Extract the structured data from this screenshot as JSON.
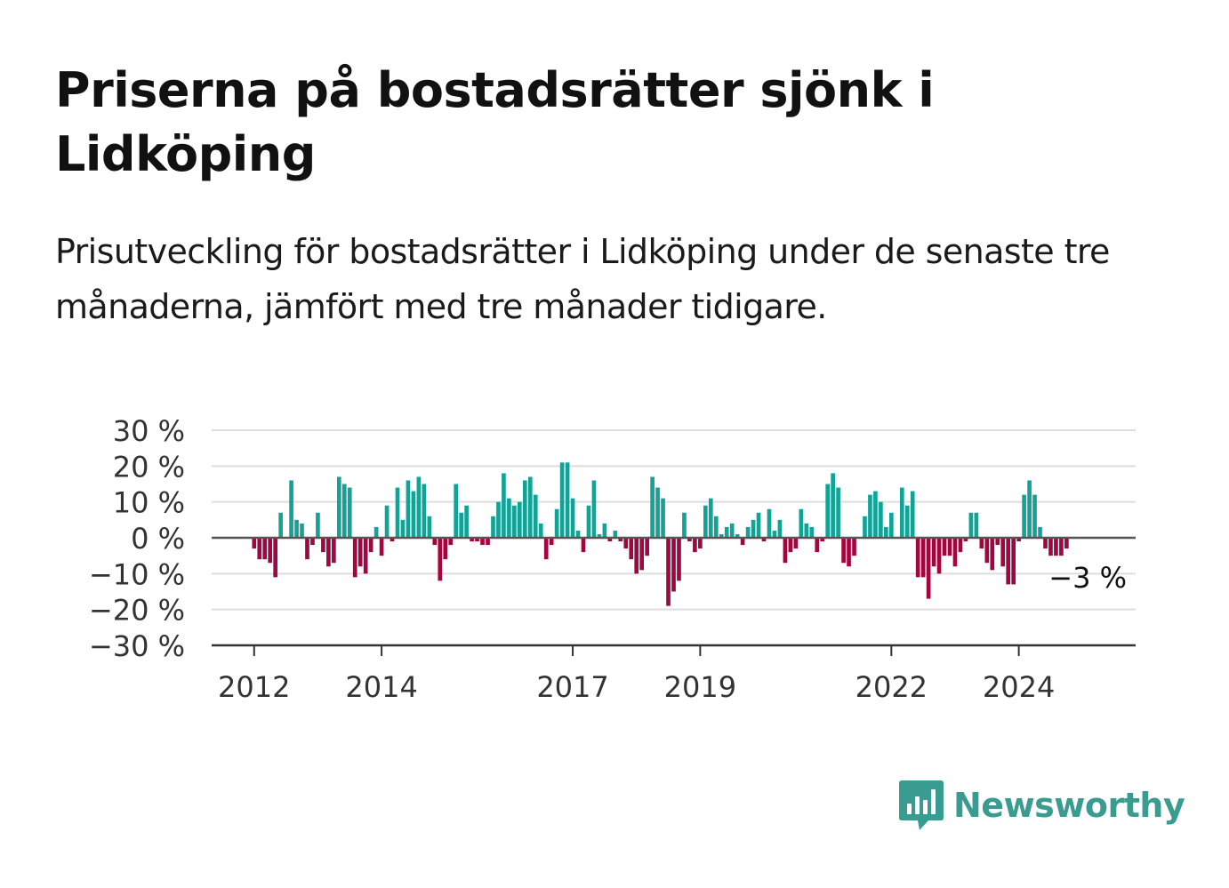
{
  "title": "Priserna på bostadsrätter sjönk i Lidköping",
  "subtitle": "Prisutveckling för bostadsrätter i Lidköping under de senaste tre månaderna, jämfört med tre månader tidigare.",
  "brand": {
    "name": "Newsworthy",
    "icon": "newsworthy-logo-icon",
    "color": "#3a9c90"
  },
  "colors": {
    "positive": "#12a397",
    "negative": "#a3053f",
    "grid": "#dddddd",
    "axis": "#333333"
  },
  "chart_data": {
    "type": "bar",
    "ylim": [
      -30,
      30
    ],
    "yticks": [
      30,
      20,
      10,
      0,
      -10,
      -20,
      -30
    ],
    "ytick_labels": [
      "30 %",
      "20 %",
      "10 %",
      "0 %",
      "−10 %",
      "−20 %",
      "−30 %"
    ],
    "xticks": [
      {
        "label": "2012",
        "x": "2012-01"
      },
      {
        "label": "2014",
        "x": "2014-01"
      },
      {
        "label": "2017",
        "x": "2017-01"
      },
      {
        "label": "2019",
        "x": "2019-01"
      },
      {
        "label": "2022",
        "x": "2022-01"
      },
      {
        "label": "2024",
        "x": "2024-01"
      }
    ],
    "x_range": [
      "2011-05",
      "2025-11"
    ],
    "grid": true,
    "last_label": "−3 %",
    "series": [
      {
        "x": [
          "2012-01",
          "2012-02",
          "2012-03",
          "2012-04",
          "2012-05",
          "2012-06",
          "2012-07",
          "2012-08",
          "2012-09",
          "2012-10",
          "2012-11",
          "2012-12",
          "2013-01",
          "2013-02",
          "2013-03",
          "2013-04",
          "2013-05",
          "2013-06",
          "2013-07",
          "2013-08",
          "2013-09",
          "2013-10",
          "2013-11",
          "2013-12",
          "2014-01",
          "2014-02",
          "2014-03",
          "2014-04",
          "2014-05",
          "2014-06",
          "2014-07",
          "2014-08",
          "2014-09",
          "2014-10",
          "2014-11",
          "2014-12",
          "2015-01",
          "2015-02",
          "2015-03",
          "2015-04",
          "2015-05",
          "2015-06",
          "2015-07",
          "2015-08",
          "2015-09",
          "2015-10",
          "2015-11",
          "2015-12",
          "2016-01",
          "2016-02",
          "2016-03",
          "2016-04",
          "2016-05",
          "2016-06",
          "2016-07",
          "2016-08",
          "2016-09",
          "2016-10",
          "2016-11",
          "2016-12",
          "2017-01",
          "2017-02",
          "2017-03",
          "2017-04",
          "2017-05",
          "2017-06",
          "2017-07",
          "2017-08",
          "2017-09",
          "2017-10",
          "2017-11",
          "2017-12",
          "2018-01",
          "2018-02",
          "2018-03",
          "2018-04",
          "2018-05",
          "2018-06",
          "2018-07",
          "2018-08",
          "2018-09",
          "2018-10",
          "2018-11",
          "2018-12",
          "2019-01",
          "2019-02",
          "2019-03",
          "2019-04",
          "2019-05",
          "2019-06",
          "2019-07",
          "2019-08",
          "2019-09",
          "2019-10",
          "2019-11",
          "2019-12",
          "2020-01",
          "2020-02",
          "2020-03",
          "2020-04",
          "2020-05",
          "2020-06",
          "2020-07",
          "2020-08",
          "2020-09",
          "2020-10",
          "2020-11",
          "2020-12",
          "2021-01",
          "2021-02",
          "2021-03",
          "2021-04",
          "2021-05",
          "2021-06",
          "2021-07",
          "2021-08",
          "2021-09",
          "2021-10",
          "2021-11",
          "2021-12",
          "2022-01",
          "2022-02",
          "2022-03",
          "2022-04",
          "2022-05",
          "2022-06",
          "2022-07",
          "2022-08",
          "2022-09",
          "2022-10",
          "2022-11",
          "2022-12",
          "2023-01",
          "2023-02",
          "2023-03",
          "2023-04",
          "2023-05",
          "2023-06",
          "2023-07",
          "2023-08",
          "2023-09",
          "2023-10",
          "2023-11",
          "2023-12",
          "2024-01",
          "2024-02",
          "2024-03",
          "2024-04",
          "2024-05",
          "2024-06",
          "2024-07",
          "2024-08",
          "2024-09",
          "2024-10"
        ],
        "values": [
          -3,
          -6,
          -6,
          -7,
          -11,
          7,
          0,
          16,
          5,
          4,
          -6,
          -2,
          7,
          -4,
          -8,
          -7,
          17,
          15,
          14,
          -11,
          -8,
          -10,
          -4,
          3,
          -5,
          9,
          -1,
          14,
          5,
          16,
          13,
          17,
          15,
          6,
          -2,
          -12,
          -6,
          -2,
          15,
          7,
          9,
          -1,
          -1,
          -2,
          -2,
          6,
          10,
          18,
          11,
          9,
          10,
          16,
          17,
          12,
          4,
          -6,
          -2,
          8,
          21,
          21,
          11,
          2,
          -4,
          9,
          16,
          1,
          4,
          -1,
          2,
          -1,
          -3,
          -6,
          -10,
          -9,
          -5,
          17,
          14,
          11,
          -19,
          -15,
          -12,
          7,
          -1,
          -4,
          -3,
          9,
          11,
          6,
          1,
          3,
          4,
          1,
          -2,
          3,
          5,
          7,
          -1,
          8,
          2,
          5,
          -7,
          -4,
          -3,
          8,
          4,
          3,
          -4,
          -1,
          15,
          18,
          14,
          -7,
          -8,
          -5,
          0,
          6,
          12,
          13,
          10,
          3,
          7,
          0,
          14,
          9,
          13,
          -11,
          -11,
          -17,
          -8,
          -10,
          -5,
          -5,
          -8,
          -4,
          -1,
          7,
          7,
          -3,
          -7,
          -9,
          -2,
          -8,
          -13,
          -13,
          -1,
          12,
          16,
          12,
          3,
          -3,
          -5,
          -5,
          -5,
          -3
        ]
      }
    ]
  }
}
